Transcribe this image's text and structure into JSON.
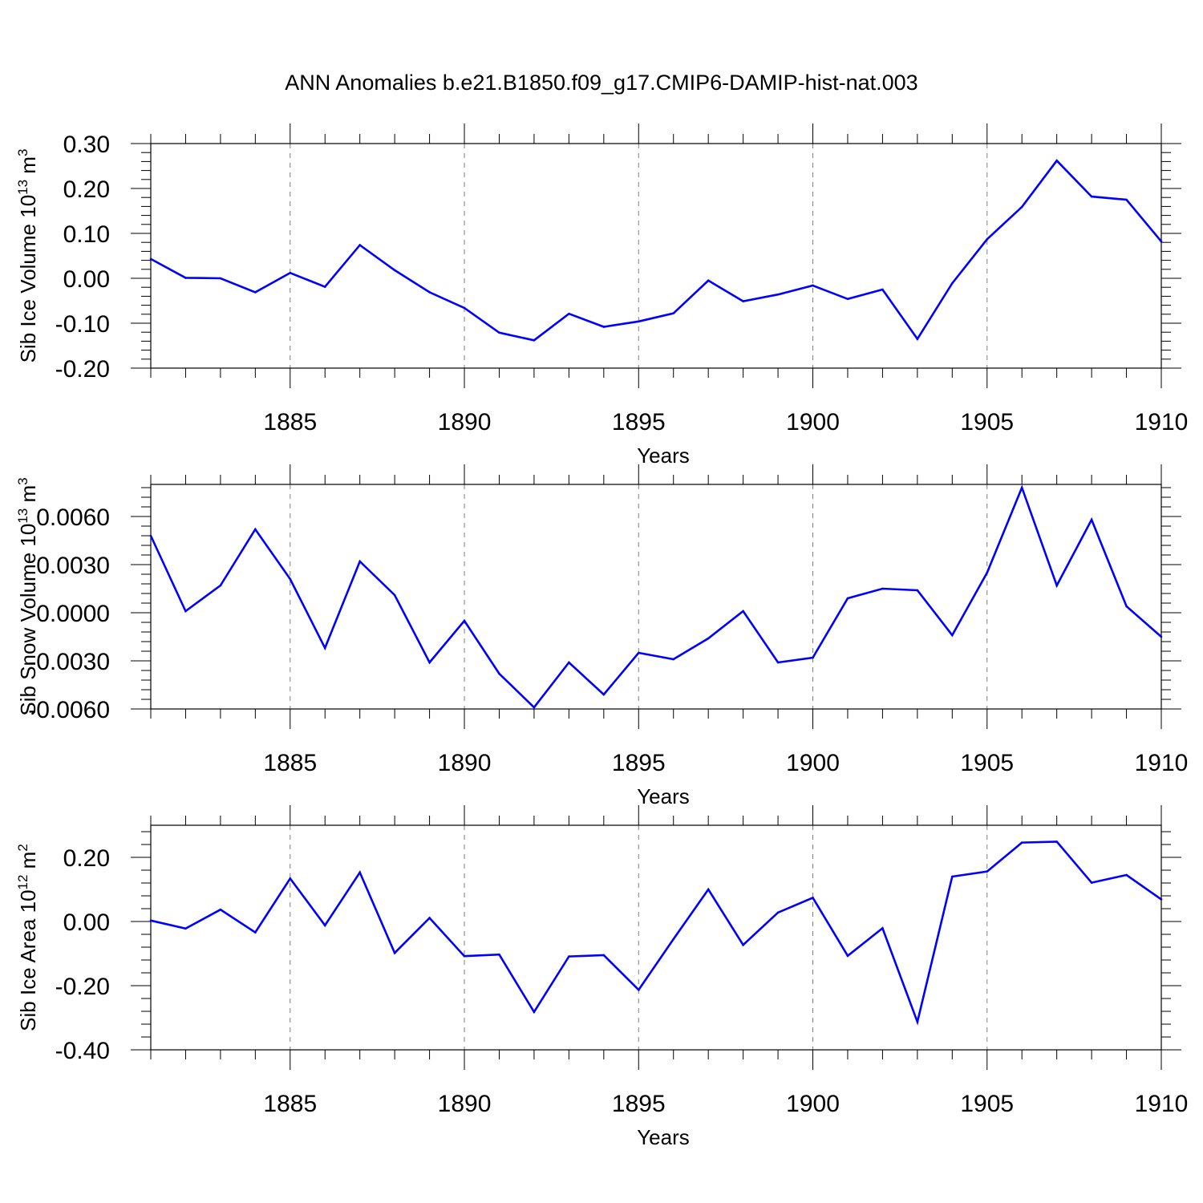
{
  "title": "ANN Anomalies b.e21.B1850.f09_g17.CMIP6-DAMIP-hist-nat.003",
  "colors": {
    "line": "#0000ff",
    "axis": "#000000",
    "grid": "#7f7f7f"
  },
  "chart_data": [
    {
      "type": "line",
      "name": "sib-ice-volume",
      "ylabel_main": "Sib Ice Volume 10",
      "ylabel_exp": "13",
      "ylabel_unit": " m",
      "ylabel_unit_exp": "3",
      "xlabel": "Years",
      "xlim": [
        1881,
        1910
      ],
      "ylim": [
        -0.2,
        0.3
      ],
      "yticks": [
        -0.2,
        -0.1,
        0.0,
        0.1,
        0.2,
        0.3
      ],
      "yticklabels": [
        "-0.20",
        "-0.10",
        "0.00",
        "0.10",
        "0.20",
        "0.30"
      ],
      "xticks": [
        1885,
        1890,
        1895,
        1900,
        1905,
        1910
      ],
      "xticklabels": [
        "1885",
        "1890",
        "1895",
        "1900",
        "1905",
        "1910"
      ],
      "x": [
        1881,
        1882,
        1883,
        1884,
        1885,
        1886,
        1887,
        1888,
        1889,
        1890,
        1891,
        1892,
        1893,
        1894,
        1895,
        1896,
        1897,
        1898,
        1899,
        1900,
        1901,
        1902,
        1903,
        1904,
        1905,
        1906,
        1907,
        1908,
        1909,
        1910
      ],
      "values": [
        0.043,
        0.001,
        0.0,
        -0.031,
        0.012,
        -0.019,
        0.074,
        0.018,
        -0.031,
        -0.066,
        -0.121,
        -0.138,
        -0.079,
        -0.108,
        -0.096,
        -0.078,
        -0.005,
        -0.051,
        -0.036,
        -0.016,
        -0.046,
        -0.025,
        -0.135,
        -0.011,
        0.087,
        0.159,
        0.262,
        0.182,
        0.175,
        0.082
      ]
    },
    {
      "type": "line",
      "name": "sib-snow-volume",
      "ylabel_main": "Sib Snow Volume 10",
      "ylabel_exp": "13",
      "ylabel_unit": " m",
      "ylabel_unit_exp": "3",
      "xlabel": "Years",
      "xlim": [
        1881,
        1910
      ],
      "ylim": [
        -0.006,
        0.008
      ],
      "yticks": [
        -0.006,
        -0.003,
        0.0,
        0.003,
        0.006
      ],
      "yticklabels": [
        "-0.0060",
        "-0.0030",
        "0.0000",
        "0.0030",
        "0.0060"
      ],
      "xticks": [
        1885,
        1890,
        1895,
        1900,
        1905,
        1910
      ],
      "xticklabels": [
        "1885",
        "1890",
        "1895",
        "1900",
        "1905",
        "1910"
      ],
      "x": [
        1881,
        1882,
        1883,
        1884,
        1885,
        1886,
        1887,
        1888,
        1889,
        1890,
        1891,
        1892,
        1893,
        1894,
        1895,
        1896,
        1897,
        1898,
        1899,
        1900,
        1901,
        1902,
        1903,
        1904,
        1905,
        1906,
        1907,
        1908,
        1909,
        1910
      ],
      "values": [
        0.0048,
        0.0001,
        0.0017,
        0.0052,
        0.0021,
        -0.0022,
        0.0032,
        0.0011,
        -0.0031,
        -0.0005,
        -0.0038,
        -0.0059,
        -0.0031,
        -0.0051,
        -0.0025,
        -0.0029,
        -0.0016,
        0.0001,
        -0.0031,
        -0.0028,
        0.0009,
        0.0015,
        0.0014,
        -0.0014,
        0.0025,
        0.0078,
        0.0017,
        0.0058,
        0.0004,
        -0.0015
      ]
    },
    {
      "type": "line",
      "name": "sib-ice-area",
      "ylabel_main": "Sib Ice Area 10",
      "ylabel_exp": "12",
      "ylabel_unit": " m",
      "ylabel_unit_exp": "2",
      "xlabel": "Years",
      "xlim": [
        1881,
        1910
      ],
      "ylim": [
        -0.4,
        0.3
      ],
      "yticks": [
        -0.4,
        -0.2,
        0.0,
        0.2
      ],
      "yticklabels": [
        "-0.40",
        "-0.20",
        "0.00",
        "0.20"
      ],
      "xticks": [
        1885,
        1890,
        1895,
        1900,
        1905,
        1910
      ],
      "xticklabels": [
        "1885",
        "1890",
        "1895",
        "1900",
        "1905",
        "1910"
      ],
      "x": [
        1881,
        1882,
        1883,
        1884,
        1885,
        1886,
        1887,
        1888,
        1889,
        1890,
        1891,
        1892,
        1893,
        1894,
        1895,
        1896,
        1897,
        1898,
        1899,
        1900,
        1901,
        1902,
        1903,
        1904,
        1905,
        1906,
        1907,
        1908,
        1909,
        1910
      ],
      "values": [
        0.003,
        -0.022,
        0.037,
        -0.034,
        0.134,
        -0.012,
        0.153,
        -0.098,
        0.011,
        -0.108,
        -0.103,
        -0.282,
        -0.109,
        -0.105,
        -0.213,
        -0.055,
        0.1,
        -0.073,
        0.028,
        0.074,
        -0.107,
        -0.021,
        -0.313,
        0.14,
        0.156,
        0.246,
        0.249,
        0.121,
        0.145,
        0.069
      ]
    }
  ]
}
